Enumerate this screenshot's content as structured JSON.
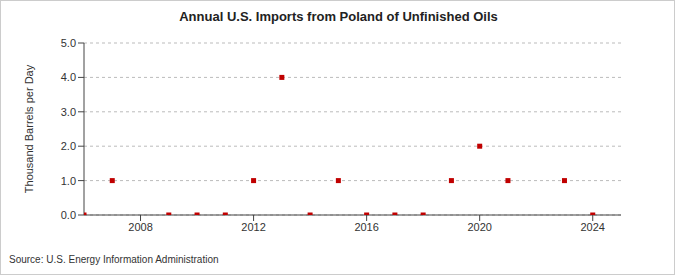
{
  "chart_data": {
    "type": "scatter",
    "title": "Annual U.S. Imports from Poland of Unfinished Oils",
    "y_label": "Thousand Barrels per Day",
    "source": "Source: U.S. Energy Information Administration",
    "x": [
      2006,
      2007,
      2008,
      2009,
      2010,
      2011,
      2012,
      2013,
      2014,
      2015,
      2016,
      2017,
      2018,
      2019,
      2020,
      2021,
      2022,
      2023,
      2024
    ],
    "values": [
      0,
      1,
      null,
      0,
      0,
      0,
      1,
      4,
      0,
      1,
      0,
      0,
      0,
      1,
      2,
      1,
      null,
      1,
      0
    ],
    "color": "#c00000",
    "marker": "square",
    "xlim": [
      2006,
      2025
    ],
    "xticks": [
      2008,
      2012,
      2016,
      2020,
      2024
    ],
    "ylim": [
      0,
      5
    ],
    "yticks": [
      {
        "value": 0,
        "label": "0.0"
      },
      {
        "value": 1,
        "label": "1.0"
      },
      {
        "value": 2,
        "label": "2.0"
      },
      {
        "value": 3,
        "label": "3.0"
      },
      {
        "value": 4,
        "label": "4.0"
      },
      {
        "value": 5,
        "label": "5.0"
      }
    ],
    "grid": true
  }
}
